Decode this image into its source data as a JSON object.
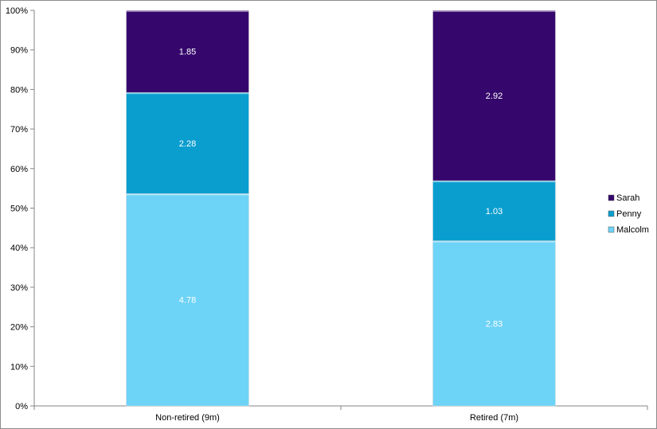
{
  "chart_data": {
    "type": "bar",
    "stacked": "percent",
    "categories": [
      "Non-retired (9m)",
      "Retired (7m)"
    ],
    "series": [
      {
        "name": "Malcolm",
        "values": [
          4.78,
          2.83
        ],
        "color": "#6dd3f7"
      },
      {
        "name": "Penny",
        "values": [
          2.28,
          1.03
        ],
        "color": "#0a9ecf"
      },
      {
        "name": "Sarah",
        "values": [
          1.85,
          2.92
        ],
        "color": "#35076c"
      }
    ],
    "y_ticks": [
      "0%",
      "10%",
      "20%",
      "30%",
      "40%",
      "50%",
      "60%",
      "70%",
      "80%",
      "90%",
      "100%"
    ],
    "ylim": [
      0,
      100
    ],
    "grid": false,
    "legend_position": "right"
  }
}
